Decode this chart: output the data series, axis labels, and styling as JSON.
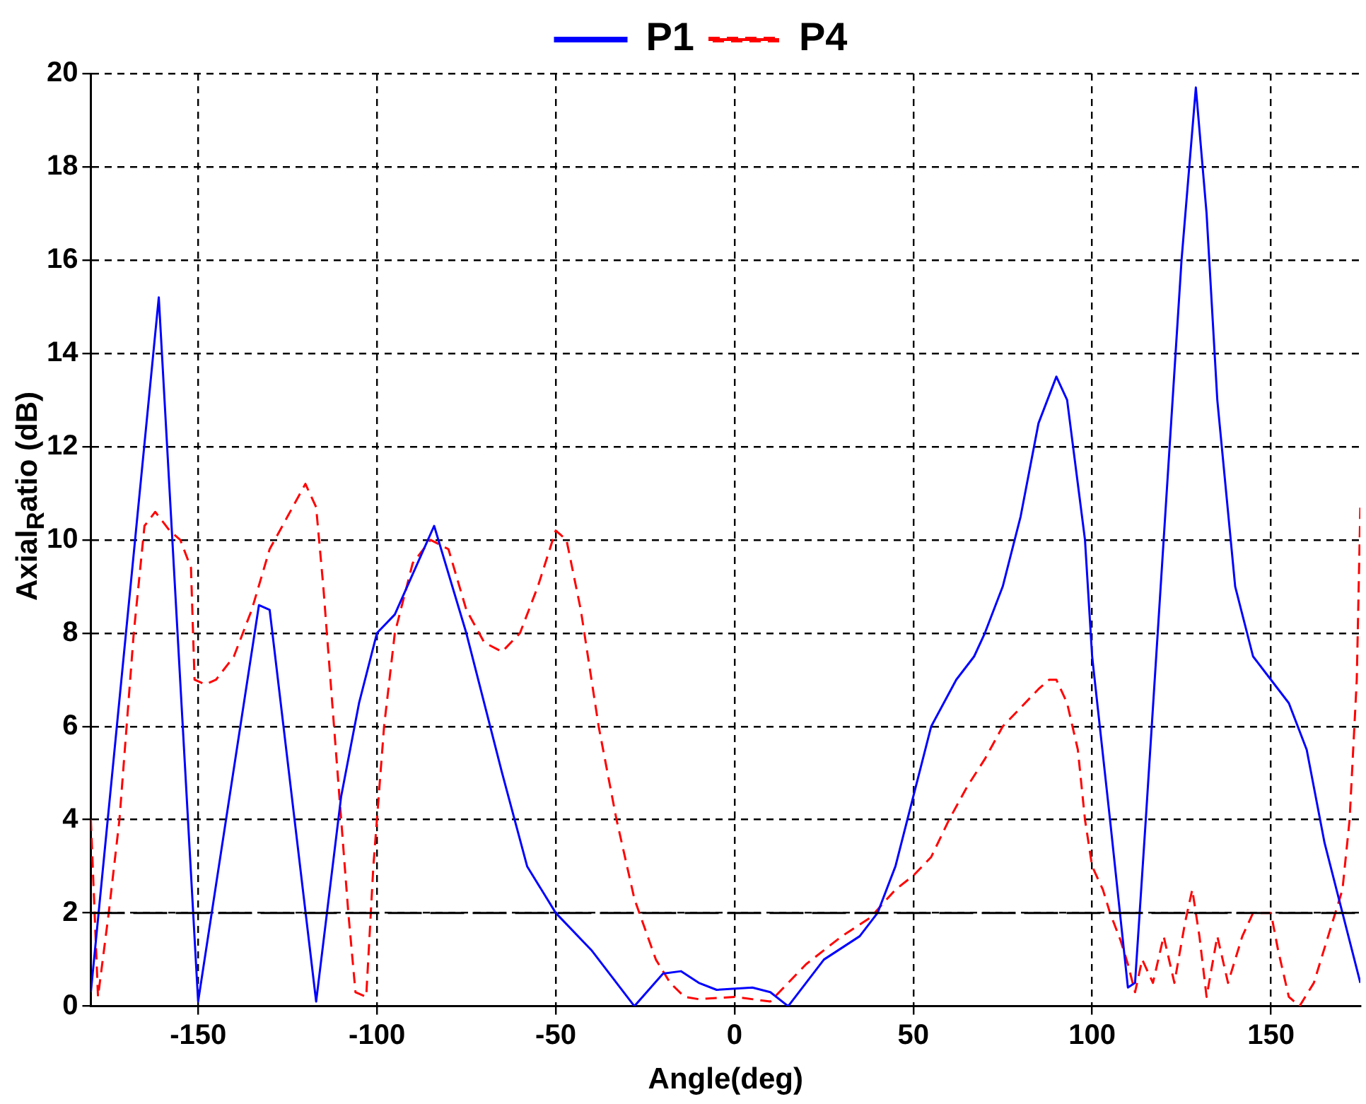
{
  "chart_data": {
    "type": "line",
    "xlabel": "Angle(deg)",
    "ylabel": "Axial$_{R}$atio (dB)",
    "xlim": [
      -180,
      175
    ],
    "xticks": [
      -150,
      -100,
      -50,
      0,
      50,
      100,
      150
    ],
    "ylim": [
      0,
      20
    ],
    "yticks": [
      0,
      2,
      4,
      6,
      8,
      10,
      12,
      14,
      16,
      18,
      20
    ],
    "grid": true,
    "legend": "top",
    "marker": "none",
    "ref_lines": [
      {
        "axis": "y",
        "value": 2,
        "color": "#000000",
        "line_style": "dashed"
      }
    ],
    "series": [
      {
        "name": "P1",
        "color": "#0000ff",
        "line_style": "solid",
        "x": [
          -180,
          -161,
          -150,
          -133,
          -130,
          -117,
          -110,
          -105,
          -100,
          -95,
          -84,
          -75,
          -65,
          -58,
          -50,
          -40,
          -28,
          -20,
          -15,
          -10,
          -5,
          5,
          10,
          15,
          25,
          35,
          40,
          45,
          50,
          55,
          62,
          67,
          70,
          75,
          80,
          85,
          90,
          93,
          98,
          100,
          105,
          110,
          112,
          115,
          120,
          125,
          129,
          132,
          135,
          140,
          145,
          150,
          155,
          160,
          165,
          170,
          175
        ],
        "values": [
          0.3,
          15.2,
          0.1,
          8.6,
          8.5,
          0.1,
          4.5,
          6.5,
          8,
          8.4,
          10.3,
          8,
          5,
          3,
          2,
          1.2,
          0,
          0.7,
          0.75,
          0.5,
          0.35,
          0.4,
          0.3,
          0,
          1,
          1.5,
          2,
          3,
          4.5,
          6,
          7,
          7.5,
          8,
          9,
          10.5,
          12.5,
          13.5,
          13,
          10,
          7.5,
          4,
          0.4,
          0.5,
          4,
          10,
          16,
          19.7,
          17,
          13,
          9,
          7.5,
          7,
          6.5,
          5.5,
          3.5,
          2,
          0.5
        ]
      },
      {
        "name": "P4",
        "color": "#ff0000",
        "line_style": "dashed",
        "x": [
          -180,
          -178,
          -175,
          -172,
          -168,
          -165,
          -162,
          -158,
          -155,
          -152,
          -151,
          -148,
          -145,
          -140,
          -135,
          -130,
          -125,
          -120,
          -117,
          -115,
          -112,
          -110,
          -108,
          -106,
          -103,
          -101,
          -98,
          -95,
          -90,
          -85,
          -80,
          -75,
          -70,
          -65,
          -60,
          -55,
          -50,
          -47,
          -43,
          -38,
          -33,
          -28,
          -22,
          -18,
          -14,
          -10,
          0,
          10,
          15,
          20,
          30,
          38,
          45,
          50,
          55,
          60,
          65,
          70,
          75,
          80,
          85,
          88,
          90,
          93,
          96,
          98,
          100,
          103,
          105,
          108,
          110,
          112,
          114,
          117,
          120,
          123,
          126,
          128,
          130,
          132,
          135,
          138,
          142,
          145,
          150,
          152,
          155,
          158,
          162,
          166,
          170,
          172,
          174,
          175
        ],
        "values": [
          4,
          0.2,
          2,
          4,
          8,
          10.3,
          10.6,
          10.2,
          10,
          9.4,
          7,
          6.9,
          7,
          7.5,
          8.5,
          9.8,
          10.5,
          11.2,
          10.7,
          9,
          6,
          4,
          2,
          0.3,
          0.2,
          3,
          6,
          8,
          9.5,
          10,
          9.8,
          8.5,
          7.8,
          7.6,
          8,
          9,
          10.2,
          10,
          8.5,
          6,
          4,
          2.3,
          1,
          0.5,
          0.2,
          0.15,
          0.2,
          0.1,
          0.5,
          0.9,
          1.5,
          1.9,
          2.5,
          2.8,
          3.2,
          4,
          4.7,
          5.3,
          6,
          6.4,
          6.8,
          7,
          7,
          6.5,
          5.5,
          4,
          3,
          2.5,
          2,
          1.4,
          0.9,
          0.3,
          1,
          0.5,
          1.5,
          0.5,
          1.8,
          2.5,
          1.5,
          0.2,
          1.5,
          0.5,
          1.5,
          2,
          2,
          1.2,
          0.2,
          0,
          0.5,
          1.5,
          2.5,
          4,
          7,
          10.7
        ]
      }
    ]
  }
}
